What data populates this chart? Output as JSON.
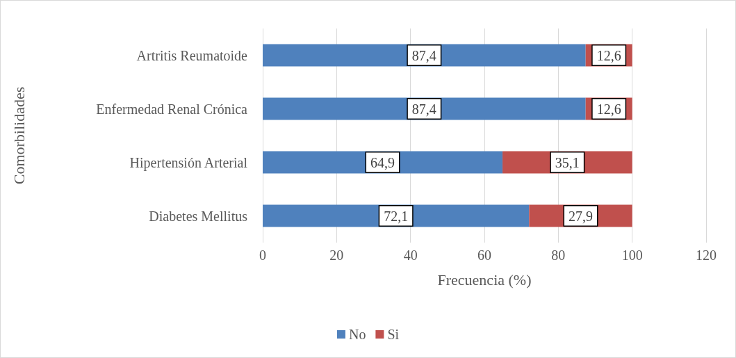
{
  "chart_data": {
    "type": "bar",
    "orientation": "horizontal",
    "stacked": true,
    "xlabel": "Frecuencia (%)",
    "ylabel": "Comorbilidades",
    "categories": [
      "Artritis Reumatoide",
      "Enfermedad Renal Crónica",
      "Hipertensión Arterial",
      "Diabetes Mellitus"
    ],
    "series": [
      {
        "name": "No",
        "color": "#4f81bd",
        "values": [
          87.4,
          87.4,
          64.9,
          72.1
        ],
        "value_labels": [
          "87,4",
          "87,4",
          "64,9",
          "72,1"
        ]
      },
      {
        "name": "Si",
        "color": "#c0504d",
        "values": [
          12.6,
          12.6,
          35.1,
          27.9
        ],
        "value_labels": [
          "12,6",
          "12,6",
          "35,1",
          "27,9"
        ]
      }
    ],
    "xlim": [
      0,
      120
    ],
    "xticks": [
      0,
      20,
      40,
      60,
      80,
      100,
      120
    ],
    "grid": "x",
    "legend": "bottom"
  }
}
